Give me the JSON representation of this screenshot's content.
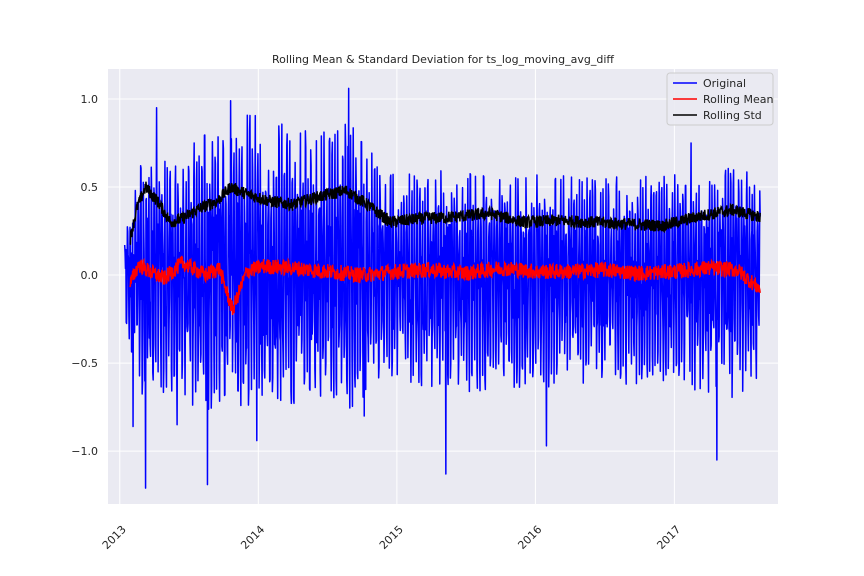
{
  "chart_data": {
    "type": "line",
    "title": "Rolling Mean & Standard Deviation for ts_log_moving_avg_diff",
    "xlabel": "",
    "ylabel": "",
    "xlim": [
      "2012-12-01",
      "2017-10-01"
    ],
    "ylim": [
      -1.3,
      1.17
    ],
    "x_ticks": [
      "2013",
      "2014",
      "2015",
      "2016",
      "2017"
    ],
    "y_ticks": [
      -1.0,
      -0.5,
      0.0,
      0.5,
      1.0
    ],
    "y_tick_labels": [
      "−1.0",
      "−0.5",
      "0.0",
      "0.5",
      "1.0"
    ],
    "grid": true,
    "legend_position": "top-right",
    "x_range": [
      "2013-01-14",
      "2017-08-15"
    ],
    "series": [
      {
        "name": "Original",
        "color": "#0000ff",
        "x": [
          "2013-01-14",
          "2013-03-01",
          "2013-06-01",
          "2013-09-01",
          "2013-12-01",
          "2014-03-01",
          "2014-06-01",
          "2014-09-01",
          "2014-12-01",
          "2015-03-01",
          "2015-06-01",
          "2015-09-01",
          "2015-12-01",
          "2016-03-01",
          "2016-06-01",
          "2016-09-01",
          "2016-12-01",
          "2017-03-01",
          "2017-06-01",
          "2017-08-15"
        ],
        "envelope_upper": [
          0.22,
          0.72,
          0.65,
          0.88,
          0.92,
          0.88,
          0.85,
          0.9,
          0.62,
          0.6,
          0.6,
          0.57,
          0.58,
          0.58,
          0.57,
          0.56,
          0.56,
          0.6,
          0.62,
          0.58
        ],
        "envelope_lower": [
          -0.3,
          -0.75,
          -0.72,
          -0.78,
          -0.75,
          -0.75,
          -0.74,
          -0.76,
          -0.6,
          -0.68,
          -0.65,
          -0.68,
          -0.68,
          -0.64,
          -0.62,
          -0.63,
          -0.64,
          -0.66,
          -0.7,
          -0.65
        ],
        "extremes": [
          {
            "x": "2013-02-05",
            "y": -0.86
          },
          {
            "x": "2013-03-10",
            "y": -1.21
          },
          {
            "x": "2013-04-08",
            "y": 0.95
          },
          {
            "x": "2013-06-01",
            "y": -0.85
          },
          {
            "x": "2013-08-20",
            "y": -1.19
          },
          {
            "x": "2013-10-20",
            "y": 0.99
          },
          {
            "x": "2013-12-28",
            "y": -0.94
          },
          {
            "x": "2014-08-27",
            "y": 1.06
          },
          {
            "x": "2014-10-07",
            "y": -0.8
          },
          {
            "x": "2015-05-10",
            "y": -1.13
          },
          {
            "x": "2016-01-30",
            "y": -0.97
          },
          {
            "x": "2017-02-14",
            "y": 0.75
          },
          {
            "x": "2017-04-23",
            "y": -1.05
          }
        ]
      },
      {
        "name": "Rolling Mean",
        "color": "#ff0000",
        "x": [
          "2013-01-28",
          "2013-02-20",
          "2013-03-20",
          "2013-04-28",
          "2013-06-15",
          "2013-08-15",
          "2013-09-20",
          "2013-10-25",
          "2013-12-01",
          "2014-01-15",
          "2014-04-01",
          "2014-07-01",
          "2014-10-01",
          "2015-01-01",
          "2015-04-01",
          "2015-07-01",
          "2015-10-01",
          "2016-01-01",
          "2016-04-01",
          "2016-07-01",
          "2016-10-01",
          "2017-01-01",
          "2017-04-01",
          "2017-06-15",
          "2017-08-15"
        ],
        "y": [
          -0.05,
          0.06,
          0.02,
          -0.02,
          0.07,
          0.0,
          0.04,
          -0.2,
          0.02,
          0.05,
          0.04,
          0.02,
          0.0,
          0.02,
          0.03,
          0.01,
          0.04,
          0.02,
          0.02,
          0.03,
          0.01,
          0.02,
          0.04,
          0.03,
          -0.08
        ]
      },
      {
        "name": "Rolling Std",
        "color": "#000000",
        "x": [
          "2013-01-28",
          "2013-02-15",
          "2013-03-10",
          "2013-04-10",
          "2013-05-15",
          "2013-06-15",
          "2013-08-01",
          "2013-09-15",
          "2013-10-20",
          "2013-12-01",
          "2014-02-01",
          "2014-04-01",
          "2014-06-01",
          "2014-08-20",
          "2014-10-15",
          "2014-12-15",
          "2015-03-01",
          "2015-06-01",
          "2015-09-01",
          "2015-12-01",
          "2016-03-01",
          "2016-06-01",
          "2016-09-01",
          "2016-12-01",
          "2017-03-01",
          "2017-06-01",
          "2017-08-15"
        ],
        "y": [
          0.2,
          0.38,
          0.5,
          0.42,
          0.3,
          0.32,
          0.38,
          0.42,
          0.5,
          0.46,
          0.42,
          0.4,
          0.44,
          0.48,
          0.4,
          0.3,
          0.32,
          0.33,
          0.35,
          0.3,
          0.31,
          0.3,
          0.29,
          0.28,
          0.33,
          0.37,
          0.33
        ]
      }
    ]
  }
}
